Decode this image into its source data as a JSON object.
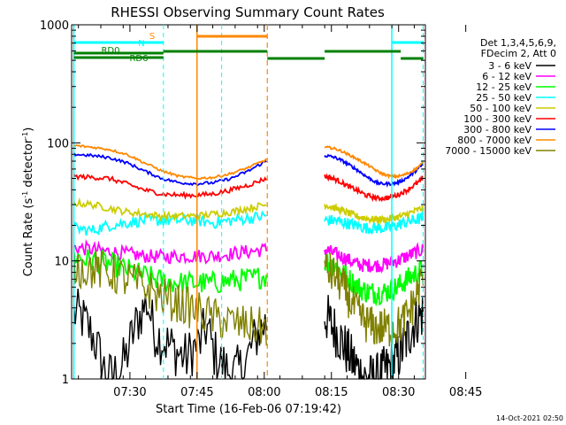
{
  "chart_data": {
    "type": "line",
    "title": "RHESSI Observing Summary Count Rates",
    "xlabel": "Start Time (16-Feb-06 07:19:42)",
    "ylabel_main": "Count Rate (s",
    "ylabel_sup1": "-1",
    "ylabel_mid": " detector",
    "ylabel_sup2": "-1",
    "ylabel_end": ")",
    "yscale": "log",
    "ylim": [
      1,
      1000
    ],
    "xlim_min": [
      -7,
      72
    ],
    "x_ticks": [
      {
        "value": 10.3,
        "label": "07:30"
      },
      {
        "value": 25.3,
        "label": "07:45"
      },
      {
        "value": 40.3,
        "label": "08:00"
      },
      {
        "value": 55.3,
        "label": "08:15"
      },
      {
        "value": 70.3,
        "label": "08:30"
      },
      {
        "value": 85.3,
        "label": "08:45"
      }
    ],
    "y_ticks": [
      {
        "value": 1,
        "label": "1"
      },
      {
        "value": 10,
        "label": "10"
      },
      {
        "value": 100,
        "label": "100"
      },
      {
        "value": 1000,
        "label": "1000"
      }
    ],
    "legend_header": [
      "Det 1,3,4,5,6,9,",
      "FDecim 2, Att 0"
    ],
    "series": [
      {
        "name": "3 - 6 keV",
        "color": "#000000",
        "gap_values": [
          3.6,
          3.4,
          2.8,
          2.2,
          1.5,
          1.0,
          1.1,
          1.2,
          1.6,
          2.5,
          3.5,
          4.5,
          2.6,
          2.2,
          2.0,
          1.8,
          1.6,
          1.5,
          1.8,
          2.0,
          2.8,
          1.7,
          1.4,
          1.2,
          1.1,
          1.2,
          1.4,
          2.0,
          2.6,
          3.0
        ],
        "seg2_values": [
          3.5,
          3.0,
          2.6,
          2.2,
          1.8,
          1.5,
          1.3,
          1.1,
          1.0,
          1.0,
          1.0,
          1.1,
          1.2,
          1.3,
          1.5,
          1.8,
          2.2,
          2.8,
          3.3,
          3.6
        ]
      },
      {
        "name": "6 - 12 keV",
        "color": "#ff00ff",
        "gap_values": [
          13,
          12.5,
          12,
          11.5,
          11,
          10.8,
          11,
          11,
          11,
          11.5,
          12,
          12.5
        ],
        "seg2_values": [
          12.5,
          12,
          11.5,
          11,
          10.5,
          10,
          9.5,
          9.2,
          9.2,
          9.2,
          9.2,
          9.2,
          9.5,
          9.8,
          10,
          10.5,
          11,
          11.5,
          12,
          12.5
        ]
      },
      {
        "name": "12 - 25 keV",
        "color": "#00ff00",
        "gap_values": [
          11,
          10,
          9.5,
          8.5,
          7.5,
          6.8,
          6.5,
          6.5,
          6.5,
          6.8,
          7,
          7.5
        ],
        "seg2_values": [
          10,
          9.5,
          9,
          8.2,
          7.5,
          6.8,
          6.2,
          5.8,
          5.5,
          5.4,
          5.4,
          5.4,
          5.5,
          5.8,
          6,
          6.5,
          7,
          7.5,
          8,
          8.5
        ]
      },
      {
        "name": "25 - 50 keV",
        "color": "#00ffff",
        "gap_values": [
          19,
          18,
          20,
          21,
          22,
          22,
          22,
          22,
          21,
          22,
          23,
          24
        ],
        "seg2_values": [
          22,
          22,
          22,
          21.5,
          21,
          20.5,
          20,
          19.5,
          19,
          19,
          19,
          19,
          19,
          19.5,
          20,
          21,
          21.5,
          22,
          22.5,
          23
        ]
      },
      {
        "name": "50 - 100 keV",
        "color": "#cccc00",
        "gap_values": [
          31,
          30,
          28,
          26,
          25,
          24,
          24,
          24,
          25,
          26,
          28,
          30
        ],
        "seg2_values": [
          30,
          29,
          28,
          27,
          26,
          25,
          24,
          23.5,
          23,
          22.5,
          22.5,
          22.5,
          22.5,
          23,
          23.5,
          24,
          25,
          26,
          27,
          28
        ]
      },
      {
        "name": "100 - 300 keV",
        "color": "#ff0000",
        "gap_values": [
          52,
          51,
          50,
          45,
          40,
          37,
          36,
          36,
          37,
          40,
          44,
          50
        ],
        "seg2_values": [
          52,
          51,
          49,
          47,
          44,
          42,
          40,
          38,
          36,
          35,
          34,
          34,
          34,
          35,
          36,
          38,
          40,
          43,
          46,
          50
        ]
      },
      {
        "name": "300 - 800 keV",
        "color": "#0000ff",
        "gap_values": [
          80,
          78,
          75,
          68,
          58,
          50,
          46,
          45,
          46,
          50,
          58,
          70
        ],
        "seg2_values": [
          78,
          77,
          75,
          72,
          68,
          64,
          60,
          56,
          52,
          49,
          46,
          45,
          45,
          45,
          46,
          48,
          51,
          55,
          60,
          66
        ]
      },
      {
        "name": "800 - 7000 keV",
        "color": "#ff8800",
        "gap_values": [
          95,
          92,
          88,
          80,
          68,
          58,
          52,
          50,
          51,
          55,
          62,
          72
        ],
        "seg2_values": [
          92,
          91,
          89,
          86,
          82,
          78,
          74,
          70,
          66,
          62,
          58,
          55,
          53,
          52,
          52,
          53,
          55,
          58,
          62,
          68
        ]
      },
      {
        "name": "7000 - 15000 keV",
        "color": "#808000",
        "gap_values": [
          9,
          8.5,
          8,
          7,
          6,
          5,
          4.3,
          3.8,
          3.3,
          3,
          2.8,
          2.7
        ],
        "seg2_values": [
          8.5,
          8,
          7.5,
          6.5,
          5.5,
          4.5,
          3.8,
          3.3,
          3.0,
          2.8,
          2.7,
          2.7,
          2.7,
          2.7,
          2.8,
          3.0,
          3.5,
          4.2,
          5.5,
          7.5
        ]
      }
    ],
    "flags": [
      {
        "label": "N",
        "color": "#00ffff"
      },
      {
        "label": "RD0",
        "color": "#008000"
      },
      {
        "label": "S",
        "color": "#ff8800"
      },
      {
        "label": "RD6",
        "color": "#008000"
      }
    ],
    "footer_date": "14-Oct-2021 02:50"
  }
}
